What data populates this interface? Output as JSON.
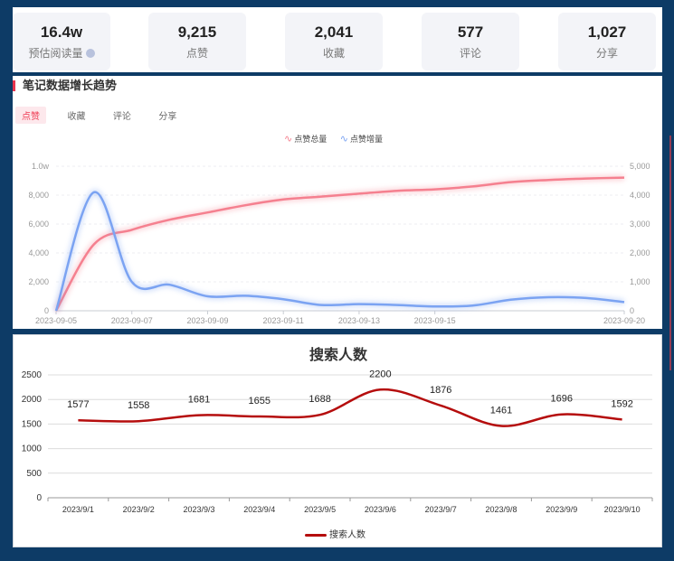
{
  "stats": [
    {
      "value": "16.4w",
      "label": "预估阅读量",
      "has_info": true
    },
    {
      "value": "9,215",
      "label": "点赞"
    },
    {
      "value": "2,041",
      "label": "收藏"
    },
    {
      "value": "577",
      "label": "评论"
    },
    {
      "value": "1,027",
      "label": "分享"
    }
  ],
  "trend_section": {
    "title": "笔记数据增长趋势",
    "tabs": [
      "点赞",
      "收藏",
      "评论",
      "分享"
    ],
    "active_tab": "点赞"
  },
  "chart_data": [
    {
      "type": "line",
      "title": "",
      "legend": [
        "点赞总量",
        "点赞增量"
      ],
      "legend_position": "top-center",
      "x_tick_labels": [
        "2023-09-05",
        "2023-09-07",
        "2023-09-09",
        "2023-09-11",
        "2023-09-13",
        "2023-09-15",
        "2023-09-20"
      ],
      "left_axis": {
        "ticks": [
          "0",
          "2,000",
          "4,000",
          "6,000",
          "8,000",
          "1.0w"
        ],
        "ylim": [
          0,
          10000
        ]
      },
      "right_axis": {
        "ticks": [
          "0",
          "1,000",
          "2,000",
          "3,000",
          "4,000",
          "5,000"
        ],
        "ylim": [
          0,
          5000
        ]
      },
      "series": [
        {
          "name": "点赞总量",
          "axis": "left",
          "color": "#f5808f",
          "x": [
            "2023-09-05",
            "2023-09-06",
            "2023-09-07",
            "2023-09-08",
            "2023-09-09",
            "2023-09-10",
            "2023-09-11",
            "2023-09-12",
            "2023-09-13",
            "2023-09-14",
            "2023-09-15",
            "2023-09-16",
            "2023-09-17",
            "2023-09-18",
            "2023-09-19",
            "2023-09-20"
          ],
          "values": [
            0,
            4600,
            5600,
            6300,
            6800,
            7300,
            7700,
            7900,
            8100,
            8300,
            8400,
            8600,
            8900,
            9050,
            9150,
            9215
          ]
        },
        {
          "name": "点赞增量",
          "axis": "right",
          "color": "#7ba3f2",
          "x": [
            "2023-09-05",
            "2023-09-06",
            "2023-09-07",
            "2023-09-08",
            "2023-09-09",
            "2023-09-10",
            "2023-09-11",
            "2023-09-12",
            "2023-09-13",
            "2023-09-14",
            "2023-09-15",
            "2023-09-16",
            "2023-09-17",
            "2023-09-18",
            "2023-09-19",
            "2023-09-20"
          ],
          "values": [
            0,
            4100,
            1000,
            900,
            500,
            520,
            400,
            200,
            230,
            200,
            150,
            180,
            380,
            470,
            440,
            300
          ]
        }
      ],
      "grid": true
    },
    {
      "type": "line",
      "title": "搜索人数",
      "categories": [
        "2023/9/1",
        "2023/9/2",
        "2023/9/3",
        "2023/9/4",
        "2023/9/5",
        "2023/9/6",
        "2023/9/7",
        "2023/9/8",
        "2023/9/9",
        "2023/9/10"
      ],
      "series": [
        {
          "name": "搜索人数",
          "color": "#b50d0d",
          "values": [
            1577,
            1558,
            1681,
            1655,
            1688,
            2200,
            1876,
            1461,
            1696,
            1592
          ]
        }
      ],
      "y_ticks": [
        "0",
        "500",
        "1000",
        "1500",
        "2000",
        "2500"
      ],
      "ylim": [
        0,
        2500
      ],
      "grid": true,
      "data_labels": true,
      "legend_position": "bottom-center"
    }
  ]
}
